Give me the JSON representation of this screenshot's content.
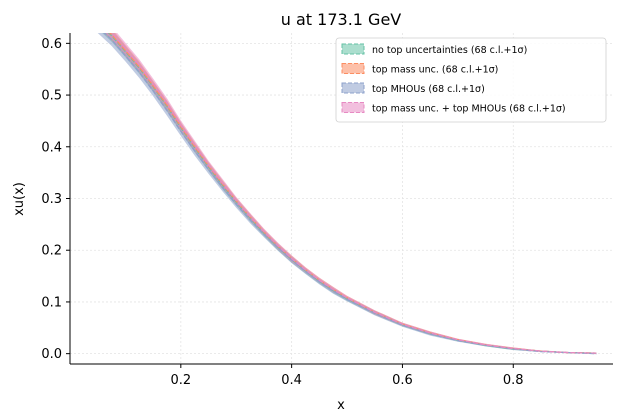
{
  "chart_data": {
    "type": "line",
    "title": "u at 173.1 GeV",
    "xlabel": "x",
    "ylabel": "xu(x)",
    "xlim": [
      0.0,
      0.98
    ],
    "ylim": [
      -0.02,
      0.62
    ],
    "xticks": [
      0.2,
      0.4,
      0.6,
      0.8
    ],
    "xtick_labels": [
      "0.2",
      "0.4",
      "0.6",
      "0.8"
    ],
    "yticks": [
      0.0,
      0.1,
      0.2,
      0.3,
      0.4,
      0.5,
      0.6
    ],
    "ytick_labels": [
      "0.0",
      "0.1",
      "0.2",
      "0.3",
      "0.4",
      "0.5",
      "0.6"
    ],
    "grid": true,
    "legend_position": "top-right",
    "x": [
      0.05,
      0.075,
      0.1,
      0.125,
      0.15,
      0.175,
      0.2,
      0.225,
      0.25,
      0.275,
      0.3,
      0.325,
      0.35,
      0.375,
      0.4,
      0.425,
      0.45,
      0.475,
      0.5,
      0.55,
      0.6,
      0.65,
      0.7,
      0.75,
      0.8,
      0.85,
      0.9,
      0.95
    ],
    "series": [
      {
        "name": "no top uncertainties (68 c.l.+1σ)",
        "color": "#66c2a5",
        "values": [
          0.64,
          0.615,
          0.584,
          0.552,
          0.516,
          0.478,
          0.437,
          0.398,
          0.361,
          0.326,
          0.293,
          0.262,
          0.233,
          0.206,
          0.182,
          0.16,
          0.14,
          0.122,
          0.106,
          0.079,
          0.056,
          0.039,
          0.026,
          0.016,
          0.009,
          0.005,
          0.002,
          0.001
        ]
      },
      {
        "name": "top mass unc. (68 c.l.+1σ)",
        "color": "#fc8d62",
        "values": [
          0.642,
          0.617,
          0.586,
          0.554,
          0.518,
          0.48,
          0.439,
          0.4,
          0.363,
          0.328,
          0.295,
          0.264,
          0.235,
          0.208,
          0.184,
          0.162,
          0.142,
          0.124,
          0.108,
          0.08,
          0.057,
          0.04,
          0.027,
          0.017,
          0.01,
          0.005,
          0.002,
          0.001
        ]
      },
      {
        "name": "top MHOUs (68 c.l.+1σ)",
        "color": "#8da0cb",
        "values": [
          0.632,
          0.607,
          0.576,
          0.544,
          0.508,
          0.47,
          0.43,
          0.392,
          0.356,
          0.322,
          0.289,
          0.259,
          0.231,
          0.205,
          0.181,
          0.159,
          0.139,
          0.121,
          0.105,
          0.078,
          0.055,
          0.038,
          0.025,
          0.016,
          0.009,
          0.004,
          0.002,
          0.0
        ]
      },
      {
        "name": "top mass unc. + top MHOUs (68 c.l.+1σ)",
        "color": "#e78ac3",
        "values": [
          0.646,
          0.621,
          0.59,
          0.558,
          0.522,
          0.484,
          0.442,
          0.403,
          0.365,
          0.33,
          0.296,
          0.265,
          0.236,
          0.209,
          0.184,
          0.162,
          0.142,
          0.124,
          0.108,
          0.08,
          0.057,
          0.04,
          0.027,
          0.017,
          0.01,
          0.005,
          0.002,
          0.001
        ]
      }
    ],
    "band_halfwidth": [
      0.012,
      0.012,
      0.011,
      0.011,
      0.01,
      0.01,
      0.009,
      0.009,
      0.008,
      0.008,
      0.007,
      0.007,
      0.006,
      0.006,
      0.006,
      0.005,
      0.005,
      0.005,
      0.004,
      0.004,
      0.003,
      0.003,
      0.002,
      0.002,
      0.002,
      0.001,
      0.001,
      0.001
    ]
  }
}
